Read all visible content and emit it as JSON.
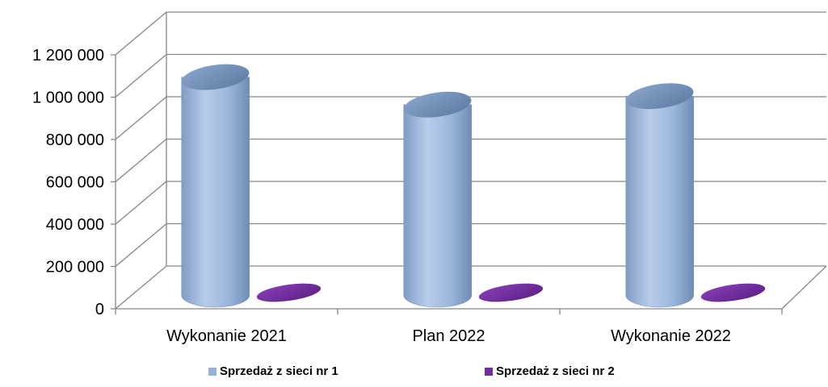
{
  "chart_data": {
    "type": "bar",
    "style": "3d-cylinder",
    "categories": [
      "Wykonanie 2021",
      "Plan 2022",
      "Wykonanie 2022"
    ],
    "series": [
      {
        "name": "Sprzedaż z sieci nr 1",
        "values": [
          1030000,
          900000,
          940000
        ],
        "color": "#95B3D7"
      },
      {
        "name": "Sprzedaż z sieci nr 2",
        "values": [
          0,
          0,
          0
        ],
        "color": "#7030A0"
      }
    ],
    "yticks": [
      "0",
      "200 000",
      "400 000",
      "600 000",
      "800 000",
      "1 000 000",
      "1 200 000"
    ],
    "ylim": [
      0,
      1200000
    ],
    "grid": true,
    "legend_position": "bottom"
  }
}
